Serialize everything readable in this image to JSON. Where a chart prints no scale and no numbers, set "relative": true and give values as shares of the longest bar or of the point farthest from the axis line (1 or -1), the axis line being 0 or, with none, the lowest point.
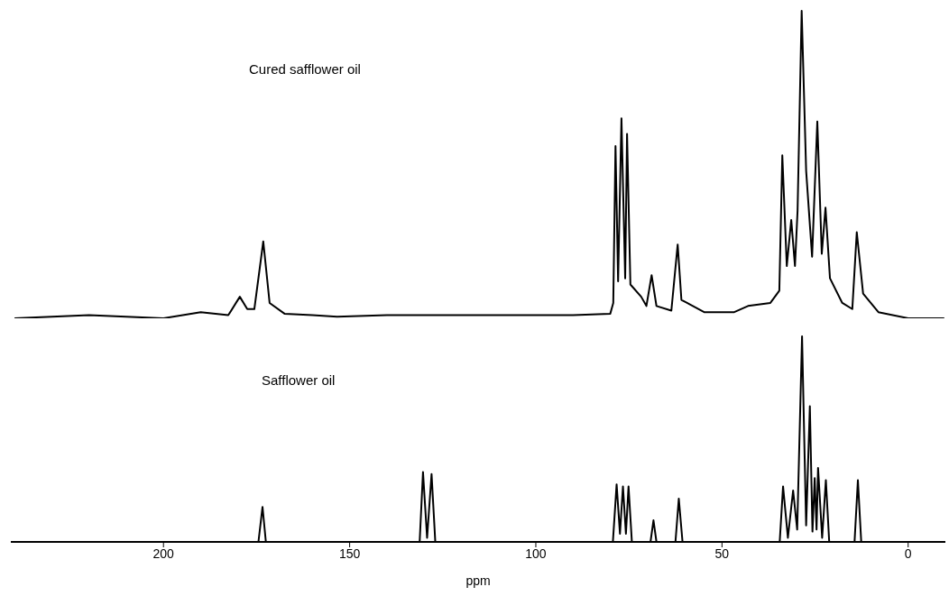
{
  "chart_data": [
    {
      "type": "line",
      "relative": true,
      "xlim": [
        241,
        -10
      ],
      "tick_labels": false,
      "legend": false,
      "marker": "none",
      "line_style": "solid",
      "series": [
        {
          "name": "Cured safflower oil",
          "color": "#000000",
          "x": [
            240,
            220,
            200,
            190,
            182.6,
            179.5,
            177.5,
            175.6,
            173.2,
            171.5,
            167.5,
            160,
            153.4,
            140,
            120,
            100,
            90,
            80,
            79.2,
            78.6,
            77.9,
            77.0,
            76.0,
            75.5,
            74.6,
            71.7,
            70.3,
            68.9,
            67.6,
            63.6,
            61.9,
            60.9,
            54.8,
            46.7,
            43.0,
            37.0,
            34.6,
            33.8,
            32.6,
            31.4,
            30.4,
            29.7,
            28.6,
            27.4,
            25.8,
            24.4,
            23.2,
            22.2,
            21.0,
            17.7,
            15.0,
            13.8,
            12.1,
            8.0,
            0,
            -9.7
          ],
          "values": [
            0,
            0.01,
            0,
            0.02,
            0.01,
            0.07,
            0.03,
            0.03,
            0.25,
            0.05,
            0.015,
            0.01,
            0.005,
            0.01,
            0.01,
            0.01,
            0.01,
            0.015,
            0.05,
            0.56,
            0.12,
            0.65,
            0.13,
            0.6,
            0.11,
            0.07,
            0.04,
            0.14,
            0.04,
            0.025,
            0.24,
            0.06,
            0.02,
            0.02,
            0.04,
            0.05,
            0.09,
            0.53,
            0.17,
            0.32,
            0.17,
            0.35,
            1.0,
            0.48,
            0.2,
            0.64,
            0.21,
            0.36,
            0.13,
            0.05,
            0.03,
            0.28,
            0.08,
            0.02,
            0,
            0
          ]
        }
      ]
    },
    {
      "type": "line",
      "relative": true,
      "xlim": [
        241,
        -10
      ],
      "xticks": [
        200,
        150,
        100,
        50,
        0
      ],
      "xlabel": "ppm",
      "legend": false,
      "marker": "none",
      "line_style": "solid",
      "series": [
        {
          "name": "Safflower oil",
          "color": "#000000",
          "x": [
            240,
            200,
            174.5,
            173.4,
            172.5,
            131.2,
            130.3,
            129.2,
            128.0,
            127,
            79.3,
            78.3,
            77.4,
            76.6,
            75.8,
            75.1,
            74.2,
            69.2,
            68.4,
            67.6,
            62.5,
            61.6,
            60.6,
            34.5,
            33.6,
            32.3,
            30.9,
            29.8,
            28.5,
            27.4,
            26.4,
            25.7,
            25.1,
            24.6,
            24.2,
            23.1,
            22.1,
            21.2,
            14.4,
            13.5,
            12.6,
            0,
            -9.7
          ],
          "values": [
            0,
            0,
            0,
            0.17,
            0,
            0,
            0.34,
            0.02,
            0.33,
            0,
            0,
            0.28,
            0.04,
            0.27,
            0.04,
            0.27,
            0,
            0,
            0.105,
            0,
            0,
            0.21,
            0,
            0,
            0.27,
            0.02,
            0.25,
            0.06,
            1.0,
            0.08,
            0.66,
            0.05,
            0.31,
            0.06,
            0.36,
            0.02,
            0.3,
            0,
            0,
            0.3,
            0,
            0,
            0
          ]
        }
      ]
    }
  ]
}
